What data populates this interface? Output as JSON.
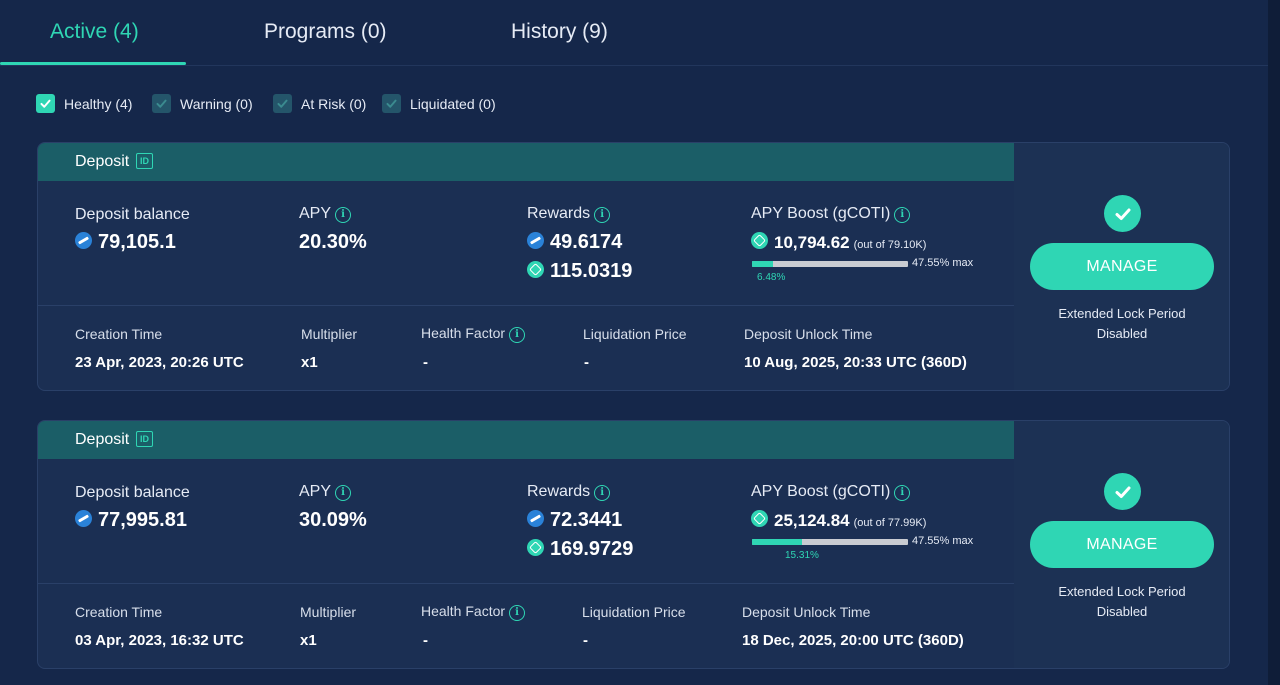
{
  "tabs": [
    {
      "label": "Active (4)",
      "active": true
    },
    {
      "label": "Programs (0)",
      "active": false
    },
    {
      "label": "History (9)",
      "active": false
    }
  ],
  "filters": [
    {
      "label": "Healthy (4)",
      "checked": true
    },
    {
      "label": "Warning (0)",
      "checked": true
    },
    {
      "label": "At Risk (0)",
      "checked": true
    },
    {
      "label": "Liquidated (0)",
      "checked": true
    }
  ],
  "labels": {
    "deposit_title": "Deposit",
    "id_badge": "ID",
    "deposit_balance": "Deposit balance",
    "apy": "APY",
    "rewards": "Rewards",
    "apy_boost": "APY Boost (gCOTI)",
    "creation_time": "Creation Time",
    "multiplier": "Multiplier",
    "health_factor": "Health Factor",
    "liquidation_price": "Liquidation Price",
    "deposit_unlock_time": "Deposit Unlock Time",
    "manage": "MANAGE",
    "extended_lock_line1": "Extended Lock Period",
    "extended_lock_line2": "Disabled",
    "info_glyph": "i"
  },
  "deposits": [
    {
      "balance": "79,105.1",
      "apy": "20.30%",
      "reward_coti": "49.6174",
      "reward_gcoti": "115.0319",
      "boost_value": "10,794.62",
      "boost_out_of": "(out of 79.10K)",
      "boost_max": "47.55% max",
      "boost_pct_label": "6.48%",
      "boost_fraction": 0.136,
      "creation_time": "23 Apr, 2023, 20:26 UTC",
      "multiplier": "x1",
      "health_factor": "-",
      "liquidation_price": "-",
      "unlock_time": "10 Aug, 2025, 20:33 UTC (360D)"
    },
    {
      "balance": "77,995.81",
      "apy": "30.09%",
      "reward_coti": "72.3441",
      "reward_gcoti": "169.9729",
      "boost_value": "25,124.84",
      "boost_out_of": "(out of 77.99K)",
      "boost_max": "47.55% max",
      "boost_pct_label": "15.31%",
      "boost_fraction": 0.322,
      "creation_time": "03 Apr, 2023, 16:32 UTC",
      "multiplier": "x1",
      "health_factor": "-",
      "liquidation_price": "-",
      "unlock_time": "18 Dec, 2025, 20:00 UTC (360D)"
    }
  ],
  "colors": {
    "background": "#15274a",
    "accent": "#2fd6b4",
    "card_header": "#1b5e67"
  },
  "icons": {
    "check": "check-icon",
    "info": "info-icon",
    "coti": "coti-coin-icon",
    "gcoti": "gcoti-coin-icon"
  }
}
